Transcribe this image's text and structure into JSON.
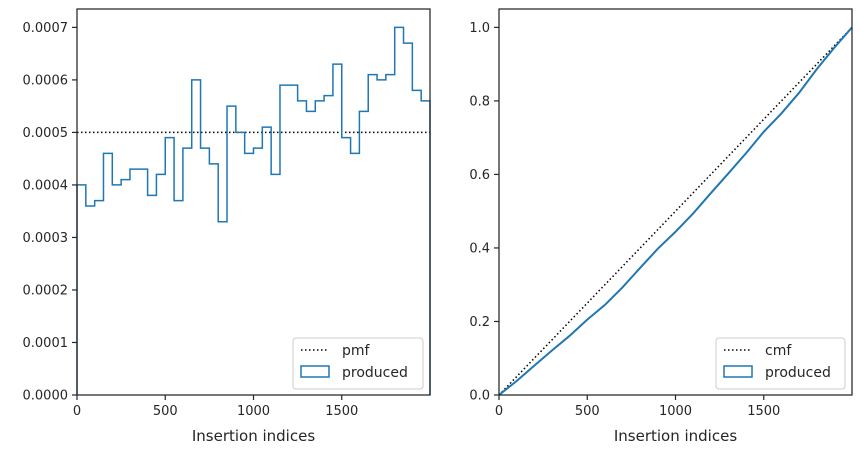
{
  "colors": {
    "series": "#1f77b4",
    "reference": "#000000",
    "axes": "#262626",
    "legend_frame": "#cccccc"
  },
  "chart_data": [
    {
      "type": "histogram-step",
      "xlabel": "Insertion indices",
      "ylabel": "",
      "xlim": [
        0,
        2000
      ],
      "ylim": [
        0,
        0.000735
      ],
      "xticks": [
        0,
        500,
        1000,
        1500
      ],
      "yticks": [
        0,
        0.0001,
        0.0002,
        0.0003,
        0.0004,
        0.0005,
        0.0006,
        0.0007
      ],
      "xtick_labels": [
        "0",
        "500",
        "1000",
        "1500"
      ],
      "ytick_labels": [
        "0.0000",
        "0.0001",
        "0.0002",
        "0.0003",
        "0.0004",
        "0.0005",
        "0.0006",
        "0.0007"
      ],
      "grid": false,
      "legend_position": "lower-right",
      "reference_line": {
        "name": "pmf",
        "y": 0.0005,
        "style": "dotted"
      },
      "series": [
        {
          "name": "produced",
          "bin_edges": [
            0,
            50,
            100,
            150,
            200,
            250,
            300,
            350,
            400,
            450,
            500,
            550,
            600,
            650,
            700,
            750,
            800,
            850,
            900,
            950,
            1000,
            1050,
            1100,
            1150,
            1200,
            1250,
            1300,
            1350,
            1400,
            1450,
            1500,
            1550,
            1600,
            1650,
            1700,
            1750,
            1800,
            1850,
            1900,
            1950,
            2000
          ],
          "values": [
            0.0004,
            0.00036,
            0.00037,
            0.00046,
            0.0004,
            0.00041,
            0.00043,
            0.00043,
            0.00038,
            0.00042,
            0.00049,
            0.00037,
            0.00047,
            0.0006,
            0.00047,
            0.00044,
            0.00033,
            0.00055,
            0.0005,
            0.00046,
            0.00047,
            0.00051,
            0.00042,
            0.00059,
            0.00059,
            0.00056,
            0.00054,
            0.00056,
            0.00057,
            0.00063,
            0.00049,
            0.00046,
            0.00054,
            0.00061,
            0.0006,
            0.00061,
            0.0007,
            0.00067,
            0.00058,
            0.00056
          ]
        }
      ],
      "legend": [
        "pmf",
        "produced"
      ]
    },
    {
      "type": "line",
      "xlabel": "Insertion indices",
      "ylabel": "",
      "xlim": [
        0,
        2000
      ],
      "ylim": [
        0,
        1.05
      ],
      "xticks": [
        0,
        500,
        1000,
        1500
      ],
      "yticks": [
        0,
        0.2,
        0.4,
        0.6,
        0.8,
        1.0
      ],
      "xtick_labels": [
        "0",
        "500",
        "1000",
        "1500"
      ],
      "ytick_labels": [
        "0.0",
        "0.2",
        "0.4",
        "0.6",
        "0.8",
        "1.0"
      ],
      "grid": false,
      "legend_position": "lower-right",
      "reference_line": {
        "name": "cmf",
        "points": [
          [
            0,
            0
          ],
          [
            2000,
            1.0
          ]
        ],
        "style": "dotted"
      },
      "series": [
        {
          "name": "produced",
          "x": [
            0,
            100,
            200,
            300,
            400,
            500,
            600,
            700,
            800,
            900,
            1000,
            1100,
            1200,
            1300,
            1400,
            1500,
            1600,
            1700,
            1800,
            1900,
            2000
          ],
          "y": [
            0,
            0.038,
            0.08,
            0.121,
            0.161,
            0.205,
            0.245,
            0.293,
            0.346,
            0.398,
            0.444,
            0.494,
            0.549,
            0.603,
            0.658,
            0.716,
            0.766,
            0.822,
            0.886,
            0.945,
            1.0
          ]
        }
      ],
      "legend": [
        "cmf",
        "produced"
      ]
    }
  ]
}
